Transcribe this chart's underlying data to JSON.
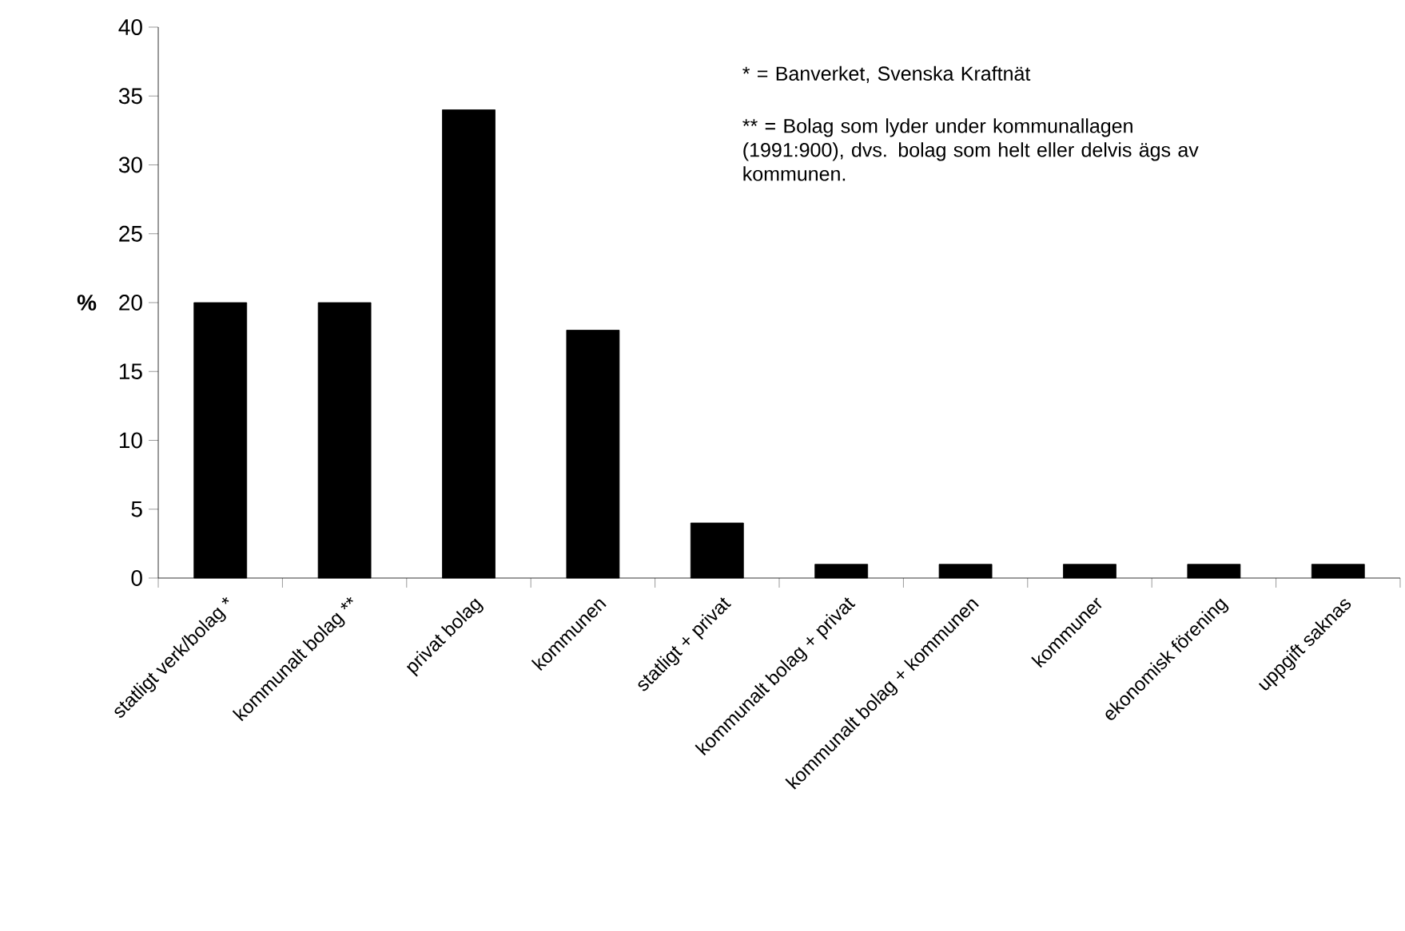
{
  "chart_data": {
    "type": "bar",
    "ylabel": "%",
    "categories": [
      "statligt verk/bolag *",
      "kommunalt bolag **",
      "privat bolag",
      "kommunen",
      "statligt + privat",
      "kommunalt bolag + privat",
      "kommunalt bolag + kommunen",
      "kommuner",
      "ekonomisk förening",
      "uppgift saknas"
    ],
    "values": [
      20,
      20,
      34,
      18,
      4,
      1,
      1,
      1,
      1,
      1
    ],
    "color": "#000000",
    "ylim": [
      0,
      40
    ],
    "yticks": [
      0,
      5,
      10,
      15,
      20,
      25,
      30,
      35,
      40
    ],
    "annotations": [
      "* =  Banverket, Svenska Kraftnät",
      "** = Bolag som lyder under kommunallagen (1991:900), dvs. bolag som helt eller delvis ägs av kommunen."
    ]
  }
}
